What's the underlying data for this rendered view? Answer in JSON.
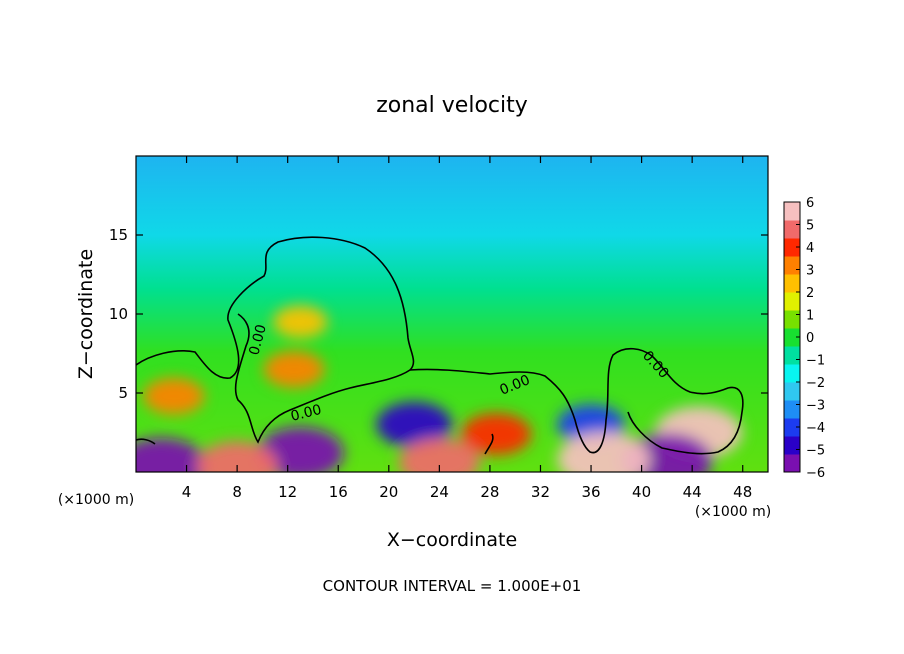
{
  "chart_data": {
    "type": "heatmap",
    "title": "zonal velocity",
    "xlabel": "X−coordinate",
    "ylabel": "Z−coordinate",
    "x_unit_label": "(×1000 m)",
    "footer": "CONTOUR INTERVAL = 1.000E+01",
    "xlim": [
      0,
      50
    ],
    "ylim": [
      0,
      20
    ],
    "x_ticks": [
      4,
      8,
      12,
      16,
      20,
      24,
      28,
      32,
      36,
      40,
      44,
      48
    ],
    "y_ticks": [
      5,
      10,
      15
    ],
    "colorbar": {
      "range": [
        -6,
        6
      ],
      "ticks": [
        6,
        5,
        4,
        3,
        2,
        1,
        0,
        -1,
        -2,
        -3,
        -4,
        -5,
        -6
      ],
      "tick_labels": [
        "6",
        "5",
        "4",
        "3",
        "2",
        "1",
        "0",
        "−1",
        "−2",
        "−3",
        "−4",
        "−5",
        "−6"
      ],
      "colors": [
        "#7a0fb0",
        "#2a00c8",
        "#1c3cf0",
        "#1e8ef5",
        "#30c8f0",
        "#08f5f0",
        "#00e0a0",
        "#18e030",
        "#78e000",
        "#e0f000",
        "#ffc000",
        "#ff8000",
        "#ff2800",
        "#f06a6a",
        "#f6c0c0"
      ]
    },
    "contour_label": "0.00",
    "features": [
      {
        "name": "positive-core-left",
        "x": 3,
        "z": 4.8,
        "value": 3.2
      },
      {
        "name": "positive-core-upper",
        "x": 13,
        "z": 9.5,
        "value": 2.6
      },
      {
        "name": "positive-core-mid",
        "x": 12.5,
        "z": 6.5,
        "value": 3.2
      },
      {
        "name": "positive-core-right",
        "x": 44.5,
        "z": 2.5,
        "value": 5.5
      },
      {
        "name": "positive-core-28",
        "x": 28.5,
        "z": 2.4,
        "value": 4.0
      },
      {
        "name": "negative-core-22",
        "x": 22,
        "z": 3.0,
        "value": -4.5
      },
      {
        "name": "negative-core-36",
        "x": 36,
        "z": 3.0,
        "value": -3.8
      },
      {
        "name": "negative-surface-1",
        "x": 2,
        "z": 0.4,
        "value": -6
      },
      {
        "name": "negative-surface-2",
        "x": 13,
        "z": 1.2,
        "value": -5.5
      },
      {
        "name": "negative-surface-3",
        "x": 42,
        "z": 0.7,
        "value": -6
      },
      {
        "name": "positive-surface-1",
        "x": 8,
        "z": 0.4,
        "value": 5
      },
      {
        "name": "positive-surface-2",
        "x": 24,
        "z": 0.6,
        "value": 5
      },
      {
        "name": "positive-surface-3",
        "x": 37,
        "z": 0.8,
        "value": 6
      }
    ]
  }
}
